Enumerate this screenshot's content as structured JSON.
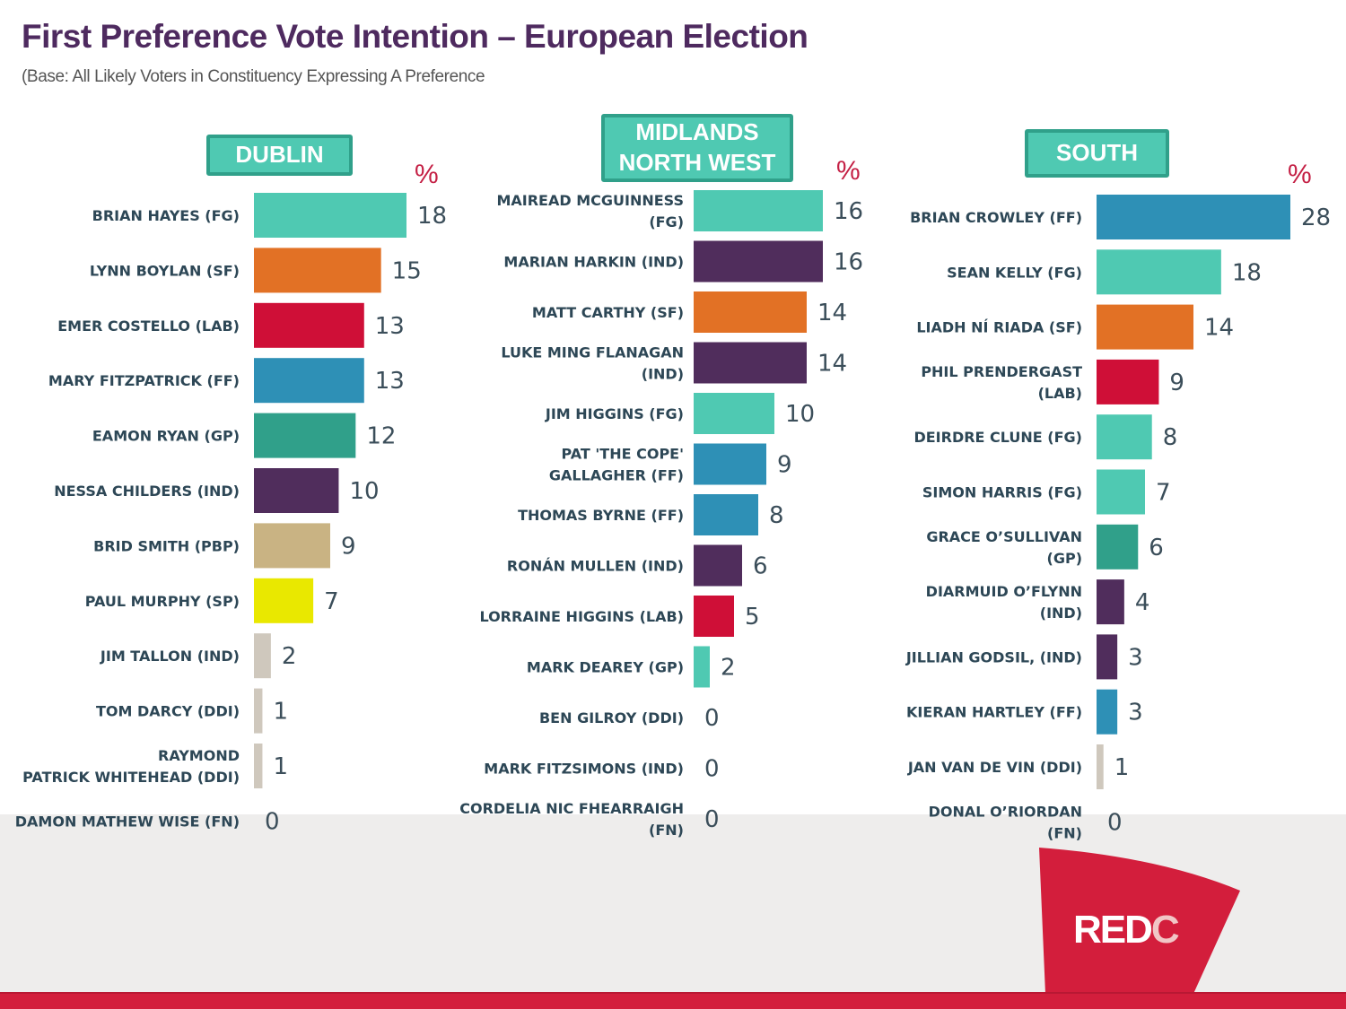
{
  "header": {
    "title": "First Preference Vote Intention – European Election",
    "subtitle": "(Base: All Likely Voters in Constituency Expressing A Preference"
  },
  "brand": {
    "logo_text": "REDC",
    "logo_main": "RED",
    "logo_accent": "C",
    "colors": {
      "red": "#d31e3c",
      "band": "#eeedec"
    }
  },
  "party_colors": {
    "FG": "#4fc9b2",
    "SF": "#e27125",
    "LAB": "#cf0f37",
    "FF": "#2e90b6",
    "GP": "#30a08a",
    "IND": "#502d5c",
    "PBP": "#c9b383",
    "SP": "#e9e800",
    "DDI": "#cfc8bd",
    "FN": "#cfc8bd"
  },
  "chart_data": [
    {
      "type": "bar",
      "orientation": "horizontal",
      "title": "DUBLIN",
      "unit_label": "%",
      "categories": [
        "BRIAN HAYES (FG)",
        "LYNN BOYLAN (SF)",
        "EMER COSTELLO (LAB)",
        "MARY FITZPATRICK (FF)",
        "EAMON RYAN (GP)",
        "NESSA CHILDERS (IND)",
        "BRID SMITH (PBP)",
        "PAUL MURPHY (SP)",
        "JIM TALLON (IND)",
        "TOM DARCY (DDI)",
        "RAYMOND PATRICK WHITEHEAD (DDI)",
        "DAMON MATHEW WISE (FN)"
      ],
      "label_lines": [
        [
          "BRIAN HAYES (FG)"
        ],
        [
          "LYNN BOYLAN (SF)"
        ],
        [
          "EMER COSTELLO (LAB)"
        ],
        [
          "MARY FITZPATRICK (FF)"
        ],
        [
          "EAMON RYAN (GP)"
        ],
        [
          "NESSA CHILDERS (IND)"
        ],
        [
          "BRID SMITH (PBP)"
        ],
        [
          "PAUL MURPHY (SP)"
        ],
        [
          "JIM TALLON (IND)"
        ],
        [
          "TOM DARCY (DDI)"
        ],
        [
          "RAYMOND",
          "PATRICK WHITEHEAD (DDI)"
        ],
        [
          "DAMON MATHEW WISE (FN)"
        ]
      ],
      "parties": [
        "FG",
        "SF",
        "LAB",
        "FF",
        "GP",
        "IND",
        "PBP",
        "SP",
        "DDI",
        "DDI",
        "DDI",
        "FN"
      ],
      "colors": [
        "#4fc9b2",
        "#e27125",
        "#cf0f37",
        "#2e90b6",
        "#30a08a",
        "#502d5c",
        "#c9b383",
        "#e9e800",
        "#cfc8bd",
        "#cfc8bd",
        "#cfc8bd",
        "#cfc8bd"
      ],
      "values": [
        18,
        15,
        13,
        13,
        12,
        10,
        9,
        7,
        2,
        1,
        1,
        0
      ],
      "xlabel": "",
      "ylabel": "",
      "xlim": [
        0,
        18
      ],
      "grid": false
    },
    {
      "type": "bar",
      "orientation": "horizontal",
      "title": "MIDLANDS NORTH WEST",
      "title_lines": [
        "MIDLANDS",
        "NORTH WEST"
      ],
      "unit_label": "%",
      "categories": [
        "MAIREAD MCGUINNESS (FG)",
        "MARIAN HARKIN (IND)",
        "MATT CARTHY (SF)",
        "LUKE MING FLANAGAN (IND)",
        "JIM HIGGINS (FG)",
        "PAT 'THE COPE' GALLAGHER (FF)",
        "THOMAS BYRNE (FF)",
        "RONÁN MULLEN (IND)",
        "LORRAINE HIGGINS (LAB)",
        "MARK DEAREY (GP)",
        "BEN GILROY (DDI)",
        "MARK FITZSIMONS (IND)",
        "CORDELIA NIC FHEARRAIGH (FN)"
      ],
      "label_lines": [
        [
          "MAIREAD MCGUINNESS",
          "(FG)"
        ],
        [
          "MARIAN HARKIN (IND)"
        ],
        [
          "MATT CARTHY (SF)"
        ],
        [
          "LUKE MING FLANAGAN",
          "(IND)"
        ],
        [
          "JIM HIGGINS (FG)"
        ],
        [
          "PAT 'THE COPE'",
          "GALLAGHER (FF)"
        ],
        [
          "THOMAS BYRNE (FF)"
        ],
        [
          "RONÁN MULLEN (IND)"
        ],
        [
          "LORRAINE HIGGINS (LAB)"
        ],
        [
          "MARK DEAREY (GP)"
        ],
        [
          "BEN GILROY (DDI)"
        ],
        [
          "MARK FITZSIMONS (IND)"
        ],
        [
          "CORDELIA NIC FHEARRAIGH",
          "(FN)"
        ]
      ],
      "parties": [
        "FG",
        "IND",
        "SF",
        "IND",
        "FG",
        "FF",
        "FF",
        "IND",
        "LAB",
        "GP",
        "DDI",
        "IND",
        "FN"
      ],
      "colors": [
        "#4fc9b2",
        "#502d5c",
        "#e27125",
        "#502d5c",
        "#4fc9b2",
        "#2e90b6",
        "#2e90b6",
        "#502d5c",
        "#cf0f37",
        "#4fc9b2",
        "#cfc8bd",
        "#502d5c",
        "#cfc8bd"
      ],
      "values": [
        16,
        16,
        14,
        14,
        10,
        9,
        8,
        6,
        5,
        2,
        0,
        0,
        0
      ],
      "xlabel": "",
      "ylabel": "",
      "xlim": [
        0,
        16
      ],
      "grid": false
    },
    {
      "type": "bar",
      "orientation": "horizontal",
      "title": "SOUTH",
      "unit_label": "%",
      "categories": [
        "BRIAN CROWLEY (FF)",
        "SEAN KELLY (FG)",
        "LIADH NÍ RIADA (SF)",
        "PHIL PRENDERGAST (LAB)",
        "DEIRDRE CLUNE (FG)",
        "SIMON HARRIS (FG)",
        "GRACE O’SULLIVAN (GP)",
        "DIARMUID O’FLYNN (IND)",
        "JILLIAN GODSIL, (IND)",
        "KIERAN HARTLEY (FF)",
        "JAN VAN DE VIN (DDI)",
        "DONAL O’RIORDAN (FN)"
      ],
      "label_lines": [
        [
          "BRIAN CROWLEY (FF)"
        ],
        [
          "SEAN KELLY (FG)"
        ],
        [
          "LIADH NÍ RIADA (SF)"
        ],
        [
          "PHIL PRENDERGAST",
          "(LAB)"
        ],
        [
          "DEIRDRE CLUNE (FG)"
        ],
        [
          "SIMON HARRIS (FG)"
        ],
        [
          "GRACE O’SULLIVAN",
          "(GP)"
        ],
        [
          "DIARMUID O’FLYNN",
          "(IND)"
        ],
        [
          "JILLIAN GODSIL, (IND)"
        ],
        [
          "KIERAN HARTLEY (FF)"
        ],
        [
          "JAN VAN DE VIN (DDI)"
        ],
        [
          "DONAL O’RIORDAN",
          "(FN)"
        ]
      ],
      "parties": [
        "FF",
        "FG",
        "SF",
        "LAB",
        "FG",
        "FG",
        "GP",
        "IND",
        "IND",
        "FF",
        "DDI",
        "FN"
      ],
      "colors": [
        "#2e90b6",
        "#4fc9b2",
        "#e27125",
        "#cf0f37",
        "#4fc9b2",
        "#4fc9b2",
        "#30a08a",
        "#502d5c",
        "#502d5c",
        "#2e90b6",
        "#cfc8bd",
        "#cfc8bd"
      ],
      "values": [
        28,
        18,
        14,
        9,
        8,
        7,
        6,
        4,
        3,
        3,
        1,
        0
      ],
      "xlabel": "",
      "ylabel": "",
      "xlim": [
        0,
        28
      ],
      "grid": false
    }
  ]
}
